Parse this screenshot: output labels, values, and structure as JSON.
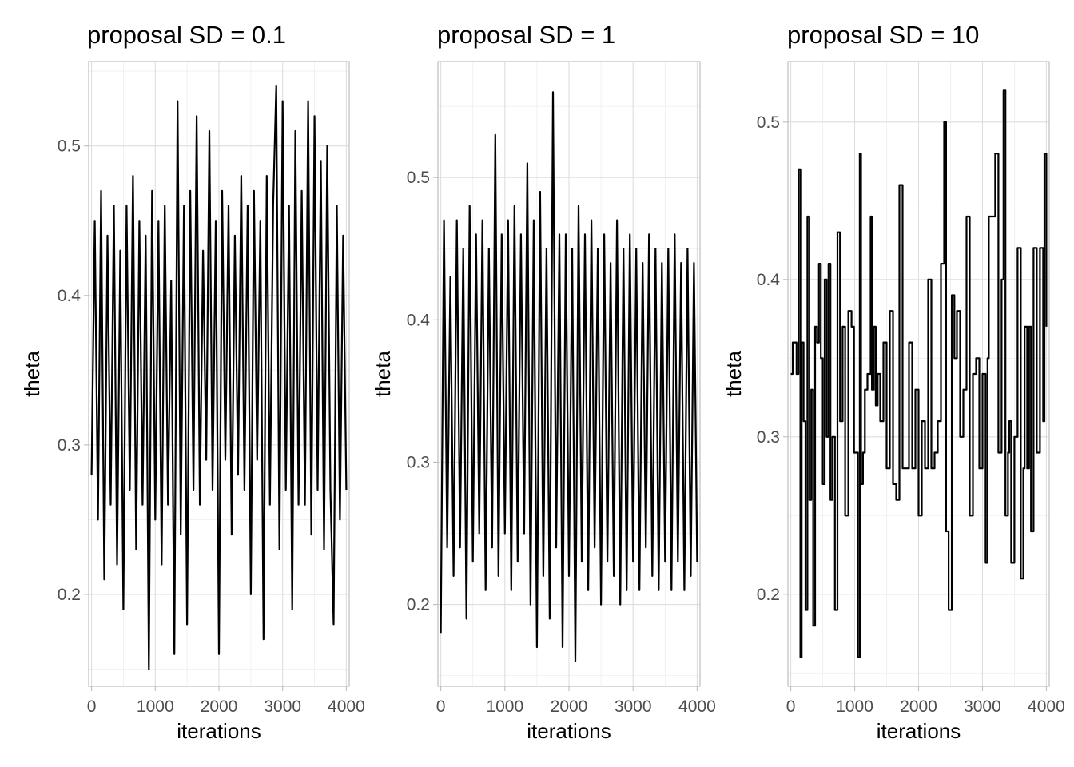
{
  "chart_data": [
    {
      "type": "line",
      "title": "proposal SD = 0.1",
      "xlabel": "iterations",
      "ylabel": "theta",
      "x_ticks": [
        "0",
        "1000",
        "2000",
        "3000",
        "4000"
      ],
      "y_ticks": [
        "0.2",
        "0.3",
        "0.4",
        "0.5"
      ],
      "xlim": [
        -45,
        4045
      ],
      "ylim": [
        0.1385,
        0.5565
      ],
      "grid": true,
      "series": [
        {
          "color": "#000000",
          "x": [
            0,
            50,
            100,
            150,
            200,
            250,
            300,
            350,
            400,
            450,
            500,
            550,
            600,
            650,
            700,
            750,
            800,
            850,
            900,
            950,
            1000,
            1050,
            1100,
            1150,
            1200,
            1250,
            1300,
            1350,
            1400,
            1450,
            1500,
            1550,
            1600,
            1650,
            1700,
            1750,
            1800,
            1850,
            1900,
            1950,
            2000,
            2050,
            2100,
            2150,
            2200,
            2250,
            2300,
            2350,
            2400,
            2450,
            2500,
            2550,
            2600,
            2650,
            2700,
            2750,
            2800,
            2850,
            2900,
            2950,
            3000,
            3050,
            3100,
            3150,
            3200,
            3250,
            3300,
            3350,
            3400,
            3450,
            3500,
            3550,
            3600,
            3650,
            3700,
            3750,
            3800,
            3850,
            3900,
            3950,
            4000
          ],
          "y": [
            0.28,
            0.45,
            0.25,
            0.47,
            0.21,
            0.44,
            0.26,
            0.46,
            0.22,
            0.43,
            0.19,
            0.46,
            0.27,
            0.48,
            0.23,
            0.45,
            0.26,
            0.44,
            0.15,
            0.47,
            0.25,
            0.45,
            0.22,
            0.46,
            0.26,
            0.41,
            0.16,
            0.53,
            0.24,
            0.46,
            0.18,
            0.47,
            0.27,
            0.52,
            0.26,
            0.43,
            0.29,
            0.51,
            0.27,
            0.45,
            0.16,
            0.47,
            0.29,
            0.46,
            0.24,
            0.44,
            0.28,
            0.48,
            0.27,
            0.46,
            0.2,
            0.47,
            0.29,
            0.45,
            0.17,
            0.48,
            0.26,
            0.46,
            0.54,
            0.23,
            0.53,
            0.27,
            0.46,
            0.19,
            0.51,
            0.26,
            0.47,
            0.26,
            0.53,
            0.24,
            0.52,
            0.27,
            0.49,
            0.23,
            0.5,
            0.27,
            0.18,
            0.46,
            0.25,
            0.44,
            0.27
          ]
        }
      ]
    },
    {
      "type": "line",
      "title": "proposal SD = 1",
      "xlabel": "iterations",
      "ylabel": "theta",
      "x_ticks": [
        "0",
        "1000",
        "2000",
        "3000",
        "4000"
      ],
      "y_ticks": [
        "0.2",
        "0.3",
        "0.4",
        "0.5"
      ],
      "xlim": [
        -45,
        4045
      ],
      "ylim": [
        0.1425,
        0.5815
      ],
      "grid": true,
      "series": [
        {
          "color": "#000000",
          "x": [
            0,
            50,
            100,
            150,
            200,
            250,
            300,
            350,
            400,
            450,
            500,
            550,
            600,
            650,
            700,
            750,
            800,
            850,
            900,
            950,
            1000,
            1050,
            1100,
            1150,
            1200,
            1250,
            1300,
            1350,
            1400,
            1450,
            1500,
            1550,
            1600,
            1650,
            1700,
            1750,
            1800,
            1850,
            1900,
            1950,
            2000,
            2050,
            2100,
            2150,
            2200,
            2250,
            2300,
            2350,
            2400,
            2450,
            2500,
            2550,
            2600,
            2650,
            2700,
            2750,
            2800,
            2850,
            2900,
            2950,
            3000,
            3050,
            3100,
            3150,
            3200,
            3250,
            3300,
            3350,
            3400,
            3450,
            3500,
            3550,
            3600,
            3650,
            3700,
            3750,
            3800,
            3850,
            3900,
            3950,
            4000
          ],
          "y": [
            0.18,
            0.47,
            0.24,
            0.43,
            0.22,
            0.47,
            0.24,
            0.45,
            0.19,
            0.48,
            0.23,
            0.46,
            0.25,
            0.47,
            0.21,
            0.45,
            0.24,
            0.53,
            0.22,
            0.46,
            0.25,
            0.47,
            0.21,
            0.48,
            0.23,
            0.46,
            0.25,
            0.51,
            0.2,
            0.47,
            0.17,
            0.49,
            0.22,
            0.45,
            0.19,
            0.56,
            0.24,
            0.46,
            0.17,
            0.46,
            0.22,
            0.45,
            0.16,
            0.48,
            0.23,
            0.46,
            0.21,
            0.47,
            0.24,
            0.45,
            0.2,
            0.46,
            0.23,
            0.44,
            0.22,
            0.47,
            0.2,
            0.45,
            0.21,
            0.46,
            0.23,
            0.45,
            0.21,
            0.44,
            0.24,
            0.46,
            0.22,
            0.45,
            0.21,
            0.44,
            0.23,
            0.45,
            0.21,
            0.46,
            0.23,
            0.44,
            0.21,
            0.45,
            0.22,
            0.44,
            0.23
          ]
        }
      ]
    },
    {
      "type": "line",
      "title": "proposal SD = 10",
      "xlabel": "iterations",
      "ylabel": "theta",
      "x_ticks": [
        "0",
        "1000",
        "2000",
        "3000",
        "4000"
      ],
      "y_ticks": [
        "0.2",
        "0.3",
        "0.4",
        "0.5"
      ],
      "xlim": [
        -45,
        4045
      ],
      "ylim": [
        0.1415,
        0.5385
      ],
      "grid": true,
      "series": [
        {
          "color": "#000000",
          "step": true,
          "x": [
            0,
            30,
            90,
            120,
            150,
            170,
            200,
            230,
            260,
            290,
            320,
            350,
            380,
            410,
            440,
            470,
            500,
            530,
            560,
            590,
            620,
            650,
            690,
            730,
            770,
            810,
            850,
            900,
            950,
            990,
            1050,
            1080,
            1100,
            1130,
            1160,
            1200,
            1250,
            1270,
            1300,
            1330,
            1360,
            1400,
            1450,
            1500,
            1550,
            1600,
            1650,
            1700,
            1750,
            1800,
            1850,
            1900,
            1950,
            2000,
            2050,
            2100,
            2150,
            2200,
            2250,
            2300,
            2350,
            2400,
            2430,
            2470,
            2520,
            2560,
            2600,
            2650,
            2700,
            2750,
            2800,
            2850,
            2900,
            2950,
            3000,
            3050,
            3080,
            3100,
            3150,
            3200,
            3250,
            3300,
            3330,
            3360,
            3400,
            3420,
            3450,
            3500,
            3550,
            3600,
            3640,
            3660,
            3700,
            3730,
            3760,
            3800,
            3850,
            3900,
            3950,
            3970,
            4000
          ],
          "y": [
            0.34,
            0.36,
            0.34,
            0.47,
            0.16,
            0.36,
            0.31,
            0.19,
            0.44,
            0.26,
            0.33,
            0.18,
            0.37,
            0.36,
            0.41,
            0.35,
            0.27,
            0.4,
            0.3,
            0.41,
            0.26,
            0.3,
            0.19,
            0.43,
            0.31,
            0.37,
            0.25,
            0.38,
            0.37,
            0.29,
            0.16,
            0.48,
            0.27,
            0.29,
            0.33,
            0.34,
            0.44,
            0.33,
            0.37,
            0.32,
            0.34,
            0.31,
            0.36,
            0.28,
            0.38,
            0.27,
            0.26,
            0.46,
            0.28,
            0.28,
            0.36,
            0.28,
            0.33,
            0.25,
            0.31,
            0.28,
            0.4,
            0.28,
            0.29,
            0.31,
            0.41,
            0.5,
            0.24,
            0.19,
            0.39,
            0.35,
            0.38,
            0.3,
            0.33,
            0.44,
            0.25,
            0.34,
            0.35,
            0.28,
            0.34,
            0.22,
            0.35,
            0.44,
            0.44,
            0.48,
            0.29,
            0.4,
            0.52,
            0.25,
            0.29,
            0.31,
            0.22,
            0.3,
            0.42,
            0.21,
            0.28,
            0.37,
            0.28,
            0.37,
            0.24,
            0.42,
            0.29,
            0.42,
            0.31,
            0.48,
            0.37
          ]
        }
      ]
    }
  ]
}
